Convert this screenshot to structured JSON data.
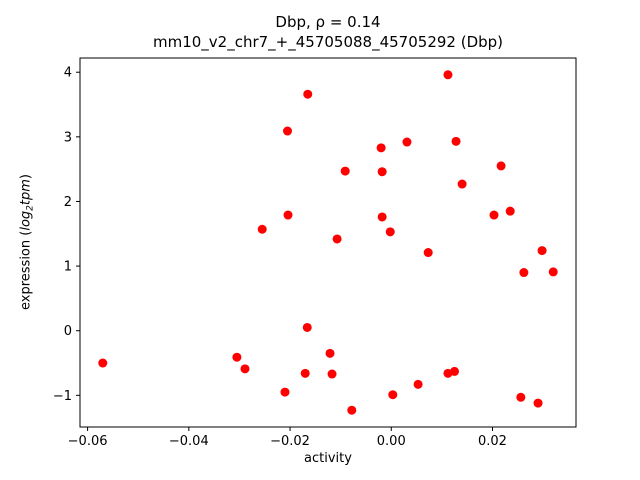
{
  "figure": {
    "title_line1": "Dbp, ρ = 0.14",
    "title_line2": "mm10_v2_chr7_+_45705088_45705292 (Dbp)",
    "xlabel": "activity",
    "ylabel_prefix": "expression (",
    "ylabel_math": "log",
    "ylabel_sub": "2",
    "ylabel_math2": "tpm",
    "ylabel_suffix": ")"
  },
  "chart_data": {
    "type": "scatter",
    "title": "Dbp, ρ = 0.14",
    "subtitle": "mm10_v2_chr7_+_45705088_45705292 (Dbp)",
    "xlabel": "activity",
    "ylabel": "expression (log2 tpm)",
    "legend": "none",
    "grid": false,
    "marker_color": "#ff0000",
    "marker_radius": 4.5,
    "xlim": [
      -0.0615,
      0.0365
    ],
    "ylim": [
      -1.49,
      4.22
    ],
    "xticks": {
      "values": [
        -0.06,
        -0.04,
        -0.02,
        0.0,
        0.02
      ],
      "labels": [
        "−0.06",
        "−0.04",
        "−0.02",
        "0.00",
        "0.02"
      ]
    },
    "yticks": {
      "values": [
        -1,
        0,
        1,
        2,
        3,
        4
      ],
      "labels": [
        "−1",
        "0",
        "1",
        "2",
        "3",
        "4"
      ]
    },
    "points": [
      [
        -0.057,
        -0.5
      ],
      [
        -0.0305,
        -0.41
      ],
      [
        -0.0289,
        -0.59
      ],
      [
        -0.0255,
        1.57
      ],
      [
        -0.0204,
        1.79
      ],
      [
        -0.0205,
        3.09
      ],
      [
        -0.021,
        -0.95
      ],
      [
        -0.0166,
        0.05
      ],
      [
        -0.0165,
        3.66
      ],
      [
        -0.017,
        -0.66
      ],
      [
        -0.0121,
        -0.35
      ],
      [
        -0.0117,
        -0.67
      ],
      [
        -0.0107,
        1.42
      ],
      [
        -0.0091,
        2.47
      ],
      [
        -0.0078,
        -1.23
      ],
      [
        -0.002,
        2.83
      ],
      [
        -0.0018,
        2.46
      ],
      [
        -0.0018,
        1.76
      ],
      [
        -0.0002,
        1.53
      ],
      [
        0.0003,
        -0.99
      ],
      [
        0.0031,
        2.92
      ],
      [
        0.0053,
        -0.83
      ],
      [
        0.0073,
        1.21
      ],
      [
        0.0112,
        -0.66
      ],
      [
        0.0125,
        -0.63
      ],
      [
        0.0112,
        3.96
      ],
      [
        0.0128,
        2.93
      ],
      [
        0.014,
        2.27
      ],
      [
        0.0203,
        1.79
      ],
      [
        0.0217,
        2.55
      ],
      [
        0.0235,
        1.85
      ],
      [
        0.0262,
        0.9
      ],
      [
        0.0256,
        -1.03
      ],
      [
        0.0298,
        1.24
      ],
      [
        0.029,
        -1.12
      ],
      [
        0.032,
        0.91
      ]
    ]
  }
}
